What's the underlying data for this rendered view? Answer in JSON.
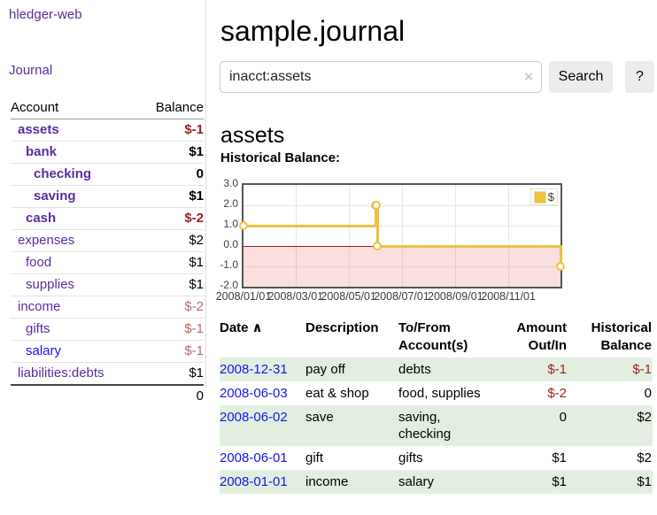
{
  "sidebar": {
    "brand": "hledger-web",
    "nav_journal": "Journal",
    "accounts_table": {
      "col_account": "Account",
      "col_balance": "Balance",
      "rows": [
        {
          "name": "assets",
          "level": 1,
          "bold": true,
          "balance": "$-1",
          "neg": "strong"
        },
        {
          "name": "bank",
          "level": 2,
          "bold": true,
          "balance": "$1"
        },
        {
          "name": "checking",
          "level": 3,
          "bold": true,
          "balance": "0"
        },
        {
          "name": "saving",
          "level": 3,
          "bold": true,
          "balance": "$1"
        },
        {
          "name": "cash",
          "level": 2,
          "bold": true,
          "balance": "$-2",
          "neg": "strong"
        },
        {
          "name": "expenses",
          "level": 1,
          "bold": false,
          "balance": "$2"
        },
        {
          "name": "food",
          "level": 2,
          "bold": false,
          "balance": "$1"
        },
        {
          "name": "supplies",
          "level": 2,
          "bold": false,
          "balance": "$1"
        },
        {
          "name": "income",
          "level": 1,
          "bold": false,
          "balance": "$-2",
          "neg": "soft"
        },
        {
          "name": "gifts",
          "level": 2,
          "bold": false,
          "balance": "$-1",
          "neg": "soft"
        },
        {
          "name": "salary",
          "level": 2,
          "bold": false,
          "balance": "$-1",
          "neg": "soft",
          "link_color": "blue"
        },
        {
          "name": "liabilities:debts",
          "level": 1,
          "bold": false,
          "balance": "$1"
        }
      ],
      "total": "0"
    }
  },
  "header": {
    "title": "sample.journal"
  },
  "search": {
    "value": "inacct:assets",
    "clear_icon": "×",
    "button": "Search",
    "help_button": "?"
  },
  "account_page": {
    "heading": "assets",
    "chart_label": "Historical Balance:"
  },
  "chart_data": {
    "type": "line",
    "style": "step",
    "title": "Historical Balance",
    "series": [
      {
        "name": "$",
        "color": "#edc240",
        "points": [
          [
            "2008-01-01",
            1
          ],
          [
            "2008-06-01",
            2
          ],
          [
            "2008-06-02",
            2
          ],
          [
            "2008-06-03",
            0
          ],
          [
            "2008-12-31",
            -1
          ]
        ]
      }
    ],
    "x_range": [
      "2008-01-01",
      "2008-12-31"
    ],
    "ylim": [
      -2,
      3
    ],
    "y_ticks": [
      "3.0",
      "2.0",
      "1.0",
      "0.0",
      "-1.0",
      "-2.0"
    ],
    "x_ticks": [
      "2008/01/01",
      "2008/03/01",
      "2008/05/01",
      "2008/07/01",
      "2008/09/01",
      "2008/11/01"
    ],
    "grid": true,
    "legend_position": "top-right",
    "negative_region_color": "#fbdede",
    "zero_line_color": "#9c1c1c"
  },
  "table": {
    "headers": {
      "date": "Date",
      "sort_icon": "∧",
      "description": "Description",
      "accounts": "To/From\nAccount(s)",
      "amount": "Amount\nOut/In",
      "balance": "Historical\nBalance"
    },
    "rows": [
      {
        "date": "2008-12-31",
        "description": "pay off",
        "accounts": "debts",
        "amount": "$-1",
        "amount_neg": true,
        "balance": "$-1",
        "balance_neg": true
      },
      {
        "date": "2008-06-03",
        "description": "eat & shop",
        "accounts": "food, supplies",
        "amount": "$-2",
        "amount_neg": true,
        "balance": "0",
        "balance_neg": false
      },
      {
        "date": "2008-06-02",
        "description": "save",
        "accounts": "saving,\nchecking",
        "amount": "0",
        "amount_neg": false,
        "balance": "$2",
        "balance_neg": false
      },
      {
        "date": "2008-06-01",
        "description": "gift",
        "accounts": "gifts",
        "amount": "$1",
        "amount_neg": false,
        "balance": "$2",
        "balance_neg": false
      },
      {
        "date": "2008-01-01",
        "description": "income",
        "accounts": "salary",
        "amount": "$1",
        "amount_neg": false,
        "balance": "$1",
        "balance_neg": false
      }
    ]
  },
  "colors": {
    "link_purple": "#5b2da0",
    "link_blue": "#1515e6",
    "negative_strong": "#9e1f1f",
    "negative_soft": "#b56a6a",
    "row_stripe_green": "#e2efe0",
    "chart_line": "#edc240",
    "chart_negative_fill": "#fbdede",
    "chart_zero_line": "#9c1c1c",
    "button_bg": "#ececec"
  }
}
